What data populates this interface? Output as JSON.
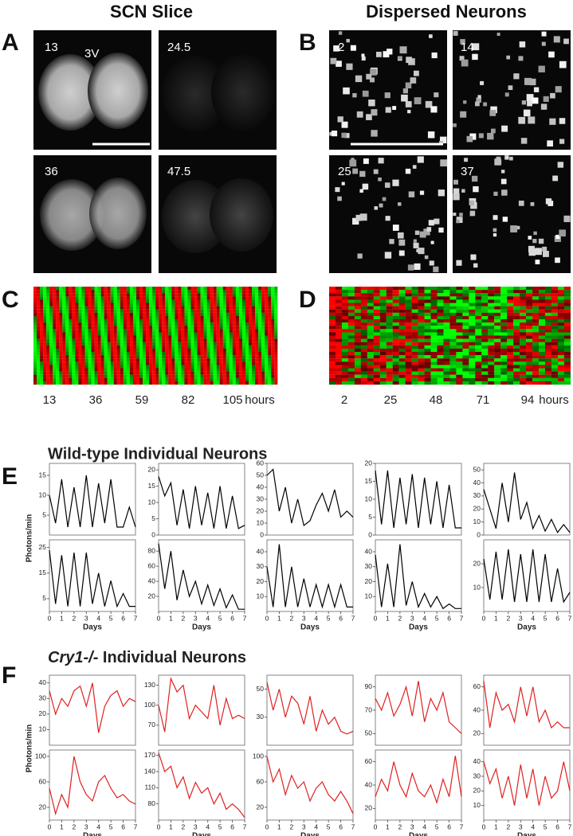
{
  "figure": {
    "headers": [
      "SCN Slice",
      "Dispersed Neurons"
    ],
    "panel_labels": [
      "A",
      "B",
      "C",
      "D",
      "E",
      "F"
    ],
    "scn_images": [
      {
        "label": "13",
        "annotation": "3V"
      },
      {
        "label": "24.5"
      },
      {
        "label": "36"
      },
      {
        "label": "47.5"
      }
    ],
    "dispersed_images": [
      {
        "label": "2"
      },
      {
        "label": "14"
      },
      {
        "label": "25"
      },
      {
        "label": "37"
      }
    ],
    "heatmap_c": {
      "ticks": [
        "13",
        "36",
        "59",
        "82",
        "105"
      ],
      "unit": "hours"
    },
    "heatmap_d": {
      "ticks": [
        "2",
        "25",
        "48",
        "71",
        "94"
      ],
      "unit": "hours"
    },
    "sections": [
      {
        "title": "Wild-type Individual Neurons",
        "y_label": "Photons/min"
      },
      {
        "title_italic": "Cry1-/-",
        "title": " Individual Neurons",
        "y_label": "Photons/min"
      }
    ]
  },
  "chart_data": [
    {
      "type": "line",
      "color": "#000000",
      "x": [
        0,
        0.5,
        1,
        1.5,
        2,
        2.5,
        3,
        3.5,
        4,
        4.5,
        5,
        5.5,
        6,
        6.5,
        7
      ],
      "values": [
        10,
        3,
        14,
        2,
        12,
        2,
        15,
        2,
        13,
        3,
        14,
        2,
        2,
        7,
        2
      ],
      "xlim": [
        0,
        7
      ],
      "ylim": [
        0,
        18
      ],
      "yticks": [
        5,
        10,
        15
      ]
    },
    {
      "type": "line",
      "color": "#000000",
      "x": [
        0,
        0.5,
        1,
        1.5,
        2,
        2.5,
        3,
        3.5,
        4,
        4.5,
        5,
        5.5,
        6,
        6.5,
        7
      ],
      "values": [
        18,
        12,
        16,
        3,
        14,
        2,
        15,
        3,
        13,
        2,
        15,
        2,
        12,
        2,
        3
      ],
      "xlim": [
        0,
        7
      ],
      "ylim": [
        0,
        22
      ],
      "yticks": [
        0,
        5,
        10,
        15,
        20
      ]
    },
    {
      "type": "line",
      "color": "#000000",
      "x": [
        0,
        0.5,
        1,
        1.5,
        2,
        2.5,
        3,
        3.5,
        4,
        4.5,
        5,
        5.5,
        6,
        6.5,
        7
      ],
      "values": [
        50,
        55,
        20,
        40,
        10,
        30,
        8,
        12,
        25,
        35,
        20,
        38,
        15,
        20,
        15
      ],
      "xlim": [
        0,
        7
      ],
      "ylim": [
        0,
        60
      ],
      "yticks": [
        0,
        10,
        20,
        30,
        40,
        50,
        60
      ]
    },
    {
      "type": "line",
      "color": "#000000",
      "x": [
        0,
        0.5,
        1,
        1.5,
        2,
        2.5,
        3,
        3.5,
        4,
        4.5,
        5,
        5.5,
        6,
        6.5,
        7
      ],
      "values": [
        18,
        3,
        18,
        2,
        16,
        3,
        17,
        2,
        16,
        3,
        15,
        2,
        14,
        2,
        2
      ],
      "xlim": [
        0,
        7
      ],
      "ylim": [
        0,
        20
      ],
      "yticks": [
        0,
        5,
        10,
        15,
        20
      ]
    },
    {
      "type": "line",
      "color": "#000000",
      "x": [
        0,
        0.5,
        1,
        1.5,
        2,
        2.5,
        3,
        3.5,
        4,
        4.5,
        5,
        5.5,
        6,
        6.5,
        7
      ],
      "values": [
        35,
        20,
        5,
        40,
        10,
        48,
        12,
        25,
        5,
        15,
        3,
        12,
        2,
        8,
        2
      ],
      "xlim": [
        0,
        7
      ],
      "ylim": [
        0,
        55
      ],
      "yticks": [
        0,
        10,
        20,
        30,
        40,
        50
      ]
    },
    {
      "type": "line",
      "color": "#000000",
      "x": [
        0,
        0.5,
        1,
        1.5,
        2,
        2.5,
        3,
        3.5,
        4,
        4.5,
        5,
        5.5,
        6,
        6.5,
        7
      ],
      "values": [
        24,
        3,
        22,
        2,
        23,
        2,
        23,
        3,
        15,
        2,
        12,
        2,
        7,
        2,
        2
      ],
      "xlim": [
        0,
        7
      ],
      "ylim": [
        0,
        28
      ],
      "yticks": [
        5,
        15,
        25
      ],
      "xticks": [
        0,
        1,
        2,
        3,
        4,
        5,
        6,
        7
      ],
      "xlabel": "Days"
    },
    {
      "type": "line",
      "color": "#000000",
      "x": [
        0,
        0.5,
        1,
        1.5,
        2,
        2.5,
        3,
        3.5,
        4,
        4.5,
        5,
        5.5,
        6,
        6.5,
        7
      ],
      "values": [
        90,
        30,
        80,
        15,
        55,
        20,
        40,
        10,
        35,
        8,
        30,
        5,
        22,
        3,
        3
      ],
      "xlim": [
        0,
        7
      ],
      "ylim": [
        0,
        95
      ],
      "yticks": [
        20,
        40,
        60,
        80
      ],
      "xticks": [
        0,
        1,
        2,
        3,
        4,
        5,
        6,
        7
      ],
      "xlabel": "Days"
    },
    {
      "type": "line",
      "color": "#000000",
      "x": [
        0,
        0.5,
        1,
        1.5,
        2,
        2.5,
        3,
        3.5,
        4,
        4.5,
        5,
        5.5,
        6,
        6.5,
        7
      ],
      "values": [
        30,
        3,
        45,
        3,
        30,
        3,
        22,
        3,
        18,
        3,
        18,
        3,
        18,
        3,
        3
      ],
      "xlim": [
        0,
        7
      ],
      "ylim": [
        0,
        48
      ],
      "yticks": [
        10,
        20,
        30,
        40
      ],
      "xticks": [
        0,
        1,
        2,
        3,
        4,
        5,
        6,
        7
      ],
      "xlabel": "Days"
    },
    {
      "type": "line",
      "color": "#000000",
      "x": [
        0,
        0.5,
        1,
        1.5,
        2,
        2.5,
        3,
        3.5,
        4,
        4.5,
        5,
        5.5,
        6,
        6.5,
        7
      ],
      "values": [
        38,
        3,
        32,
        3,
        45,
        4,
        20,
        3,
        12,
        3,
        10,
        2,
        5,
        2,
        2
      ],
      "xlim": [
        0,
        7
      ],
      "ylim": [
        0,
        48
      ],
      "yticks": [
        10,
        20,
        30,
        40
      ],
      "xticks": [
        0,
        1,
        2,
        3,
        4,
        5,
        6,
        7
      ],
      "xlabel": "Days"
    },
    {
      "type": "line",
      "color": "#000000",
      "x": [
        0,
        0.5,
        1,
        1.5,
        2,
        2.5,
        3,
        3.5,
        4,
        4.5,
        5,
        5.5,
        6,
        6.5,
        7
      ],
      "values": [
        22,
        5,
        25,
        5,
        26,
        4,
        24,
        4,
        26,
        4,
        24,
        4,
        18,
        4,
        8
      ],
      "xlim": [
        0,
        7
      ],
      "ylim": [
        0,
        30
      ],
      "yticks": [
        10,
        20
      ],
      "xticks": [
        0,
        1,
        2,
        3,
        4,
        5,
        6,
        7
      ],
      "xlabel": "Days"
    },
    {
      "type": "line",
      "color": "#e02020",
      "x": [
        0,
        0.5,
        1,
        1.5,
        2,
        2.5,
        3,
        3.5,
        4,
        4.5,
        5,
        5.5,
        6,
        6.5,
        7
      ],
      "values": [
        35,
        20,
        30,
        25,
        35,
        38,
        25,
        40,
        8,
        25,
        32,
        35,
        25,
        30,
        28
      ],
      "xlim": [
        0,
        7
      ],
      "ylim": [
        0,
        45
      ],
      "yticks": [
        10,
        20,
        30,
        40
      ]
    },
    {
      "type": "line",
      "color": "#e02020",
      "x": [
        0,
        0.5,
        1,
        1.5,
        2,
        2.5,
        3,
        3.5,
        4,
        4.5,
        5,
        5.5,
        6,
        6.5,
        7
      ],
      "values": [
        100,
        60,
        140,
        120,
        130,
        80,
        100,
        90,
        80,
        130,
        70,
        110,
        80,
        85,
        80
      ],
      "xlim": [
        0,
        7
      ],
      "ylim": [
        40,
        145
      ],
      "yticks": [
        70,
        100,
        130
      ]
    },
    {
      "type": "line",
      "color": "#e02020",
      "x": [
        0,
        0.5,
        1,
        1.5,
        2,
        2.5,
        3,
        3.5,
        4,
        4.5,
        5,
        5.5,
        6,
        6.5,
        7
      ],
      "values": [
        55,
        35,
        50,
        30,
        45,
        40,
        25,
        45,
        20,
        35,
        25,
        30,
        20,
        18,
        20
      ],
      "xlim": [
        0,
        7
      ],
      "ylim": [
        10,
        60
      ],
      "yticks": [
        30,
        50
      ]
    },
    {
      "type": "line",
      "color": "#e02020",
      "x": [
        0,
        0.5,
        1,
        1.5,
        2,
        2.5,
        3,
        3.5,
        4,
        4.5,
        5,
        5.5,
        6,
        6.5,
        7
      ],
      "values": [
        80,
        70,
        85,
        65,
        75,
        90,
        65,
        95,
        60,
        80,
        70,
        85,
        60,
        55,
        50
      ],
      "xlim": [
        0,
        7
      ],
      "ylim": [
        40,
        100
      ],
      "yticks": [
        50,
        70,
        90
      ]
    },
    {
      "type": "line",
      "color": "#e02020",
      "x": [
        0,
        0.5,
        1,
        1.5,
        2,
        2.5,
        3,
        3.5,
        4,
        4.5,
        5,
        5.5,
        6,
        6.5,
        7
      ],
      "values": [
        65,
        25,
        55,
        40,
        45,
        30,
        60,
        35,
        60,
        30,
        40,
        25,
        30,
        25,
        25
      ],
      "xlim": [
        0,
        7
      ],
      "ylim": [
        10,
        70
      ],
      "yticks": [
        20,
        40,
        60
      ]
    },
    {
      "type": "line",
      "color": "#e02020",
      "x": [
        0,
        0.5,
        1,
        1.5,
        2,
        2.5,
        3,
        3.5,
        4,
        4.5,
        5,
        5.5,
        6,
        6.5,
        7
      ],
      "values": [
        50,
        10,
        40,
        20,
        100,
        60,
        40,
        30,
        60,
        70,
        50,
        35,
        40,
        30,
        25
      ],
      "xlim": [
        0,
        7
      ],
      "ylim": [
        0,
        110
      ],
      "yticks": [
        20,
        60,
        100
      ],
      "xticks": [
        0,
        1,
        2,
        3,
        4,
        5,
        6,
        7
      ],
      "xlabel": "Days"
    },
    {
      "type": "line",
      "color": "#e02020",
      "x": [
        0,
        0.5,
        1,
        1.5,
        2,
        2.5,
        3,
        3.5,
        4,
        4.5,
        5,
        5.5,
        6,
        6.5,
        7
      ],
      "values": [
        175,
        140,
        150,
        110,
        130,
        90,
        120,
        100,
        110,
        80,
        100,
        70,
        80,
        70,
        55
      ],
      "xlim": [
        0,
        7
      ],
      "ylim": [
        50,
        180
      ],
      "yticks": [
        80,
        110,
        140,
        170
      ],
      "xticks": [
        0,
        1,
        2,
        3,
        4,
        5,
        6,
        7
      ],
      "xlabel": "Days"
    },
    {
      "type": "line",
      "color": "#e02020",
      "x": [
        0,
        0.5,
        1,
        1.5,
        2,
        2.5,
        3,
        3.5,
        4,
        4.5,
        5,
        5.5,
        6,
        6.5,
        7
      ],
      "values": [
        100,
        60,
        80,
        40,
        70,
        50,
        60,
        30,
        50,
        60,
        40,
        30,
        45,
        30,
        10
      ],
      "xlim": [
        0,
        7
      ],
      "ylim": [
        0,
        110
      ],
      "yticks": [
        20,
        60,
        100
      ],
      "xticks": [
        0,
        1,
        2,
        3,
        4,
        5,
        6,
        7
      ],
      "xlabel": "Days"
    },
    {
      "type": "line",
      "color": "#e02020",
      "x": [
        0,
        0.5,
        1,
        1.5,
        2,
        2.5,
        3,
        3.5,
        4,
        4.5,
        5,
        5.5,
        6,
        6.5,
        7
      ],
      "values": [
        30,
        45,
        35,
        60,
        40,
        30,
        50,
        35,
        30,
        40,
        25,
        45,
        30,
        65,
        30
      ],
      "xlim": [
        0,
        7
      ],
      "ylim": [
        10,
        70
      ],
      "yticks": [
        20,
        40,
        60
      ],
      "xticks": [
        0,
        1,
        2,
        3,
        4,
        5,
        6,
        7
      ],
      "xlabel": "Days"
    },
    {
      "type": "line",
      "color": "#e02020",
      "x": [
        0,
        0.5,
        1,
        1.5,
        2,
        2.5,
        3,
        3.5,
        4,
        4.5,
        5,
        5.5,
        6,
        6.5,
        7
      ],
      "values": [
        40,
        25,
        35,
        15,
        30,
        10,
        38,
        15,
        35,
        10,
        30,
        15,
        20,
        40,
        20
      ],
      "xlim": [
        0,
        7
      ],
      "ylim": [
        0,
        48
      ],
      "yticks": [
        10,
        20,
        30,
        40
      ],
      "xticks": [
        0,
        1,
        2,
        3,
        4,
        5,
        6,
        7
      ],
      "xlabel": "Days"
    }
  ]
}
